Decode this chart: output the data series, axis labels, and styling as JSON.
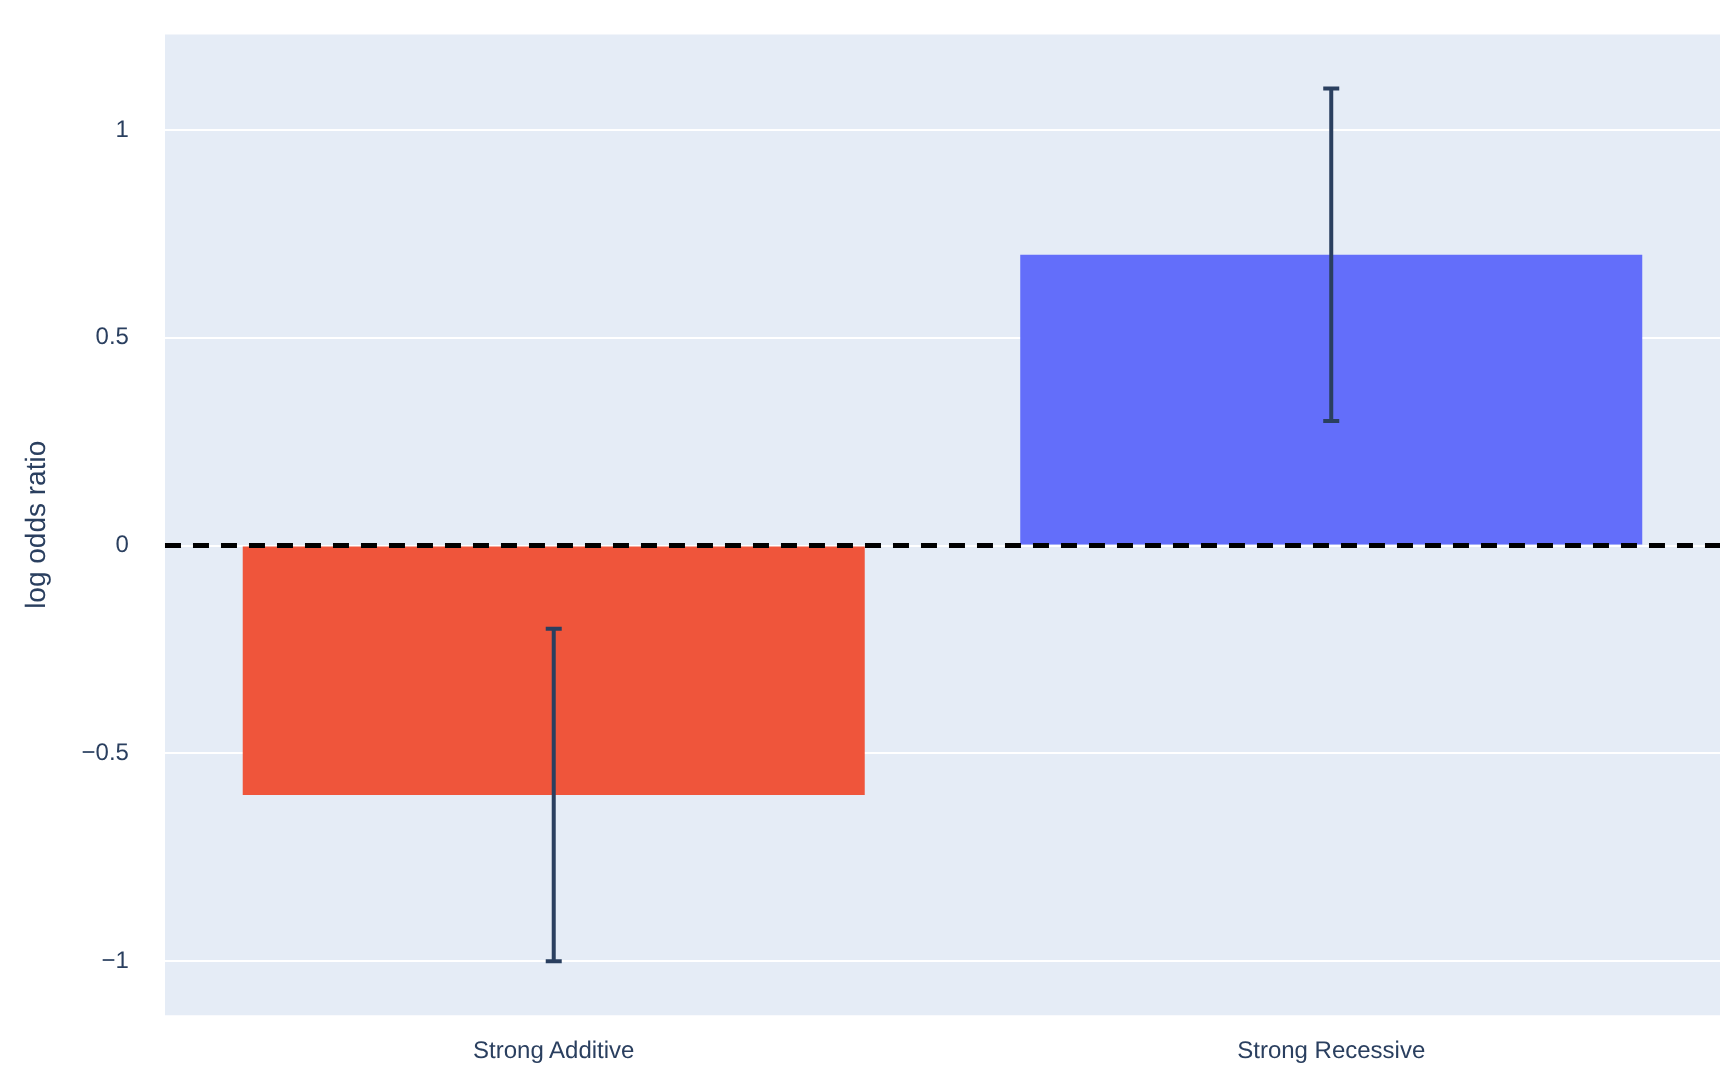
{
  "chart_data": {
    "type": "bar",
    "ylabel": "log odds ratio",
    "categories": [
      "Strong Additive",
      "Strong Recessive"
    ],
    "values": [
      -0.6,
      0.7
    ],
    "colors": [
      "#ef553b",
      "#636efa"
    ],
    "errors": [
      0.4,
      0.4
    ],
    "ylim": [
      -1.13,
      1.23
    ],
    "yticks": [
      {
        "value": -1,
        "label": "−1"
      },
      {
        "value": -0.5,
        "label": "−0.5"
      },
      0,
      0.5,
      1
    ],
    "grid": "y",
    "legend": false,
    "ref_lines": [
      {
        "axis": "y",
        "value": 0,
        "color": "#000000",
        "line_style": "dashed"
      }
    ]
  }
}
